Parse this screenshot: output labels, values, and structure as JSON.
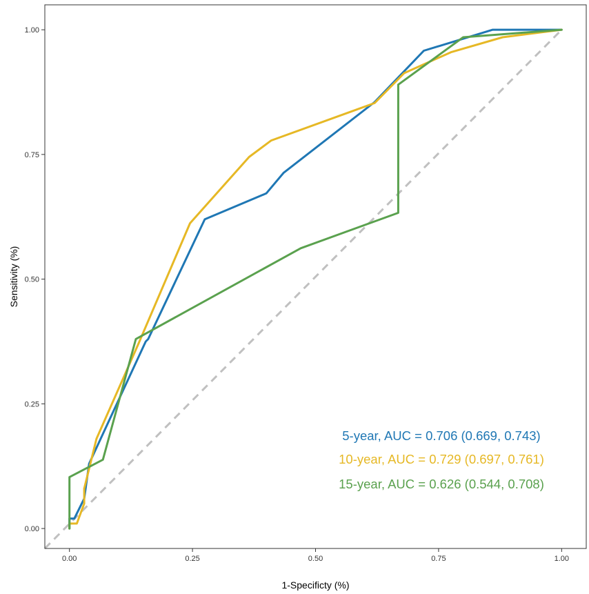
{
  "chart_data": {
    "type": "line",
    "xlabel": "1-Specificty (%)",
    "ylabel": "Sensitivity (%)",
    "xlim": [
      -0.05,
      1.05
    ],
    "ylim": [
      -0.04,
      1.05
    ],
    "xticks": [
      0.0,
      0.25,
      0.5,
      0.75,
      1.0
    ],
    "yticks": [
      0.0,
      0.25,
      0.5,
      0.75,
      1.0
    ],
    "xtick_labels": [
      "0.00",
      "0.25",
      "0.50",
      "0.75",
      "1.00"
    ],
    "ytick_labels": [
      "0.00",
      "0.25",
      "0.50",
      "0.75",
      "1.00"
    ],
    "grid": false,
    "legend_position": "bottom-right",
    "reference_line": {
      "from": [
        -0.05,
        -0.04
      ],
      "to": [
        1.0,
        1.0
      ],
      "style": "dashed",
      "color": "#c0c0c0"
    },
    "series": [
      {
        "name": "5-year, AUC = 0.706 (0.669, 0.743)",
        "color": "#1f77b4",
        "points": [
          [
            0,
            0
          ],
          [
            0,
            0.02
          ],
          [
            0.01,
            0.02
          ],
          [
            0.03,
            0.06
          ],
          [
            0.04,
            0.13
          ],
          [
            0.155,
            0.375
          ],
          [
            0.16,
            0.38
          ],
          [
            0.275,
            0.62
          ],
          [
            0.4,
            0.672
          ],
          [
            0.435,
            0.713
          ],
          [
            0.62,
            0.855
          ],
          [
            0.72,
            0.958
          ],
          [
            0.86,
            1.0
          ],
          [
            1.0,
            1.0
          ]
        ]
      },
      {
        "name": "10-year, AUC = 0.729 (0.697, 0.761)",
        "color": "#e6b825",
        "points": [
          [
            0,
            0
          ],
          [
            0,
            0.01
          ],
          [
            0.015,
            0.01
          ],
          [
            0.03,
            0.05
          ],
          [
            0.03,
            0.08
          ],
          [
            0.055,
            0.18
          ],
          [
            0.14,
            0.37
          ],
          [
            0.245,
            0.612
          ],
          [
            0.365,
            0.745
          ],
          [
            0.41,
            0.778
          ],
          [
            0.62,
            0.853
          ],
          [
            0.68,
            0.913
          ],
          [
            0.775,
            0.955
          ],
          [
            0.88,
            0.985
          ],
          [
            1.0,
            1.0
          ]
        ]
      },
      {
        "name": "15-year, AUC = 0.626 (0.544, 0.708)",
        "color": "#5aa14e",
        "points": [
          [
            0,
            0
          ],
          [
            0,
            0.103
          ],
          [
            0.068,
            0.138
          ],
          [
            0.135,
            0.38
          ],
          [
            0.47,
            0.562
          ],
          [
            0.668,
            0.633
          ],
          [
            0.668,
            0.89
          ],
          [
            0.8,
            0.985
          ],
          [
            1.0,
            1.0
          ]
        ]
      }
    ]
  }
}
